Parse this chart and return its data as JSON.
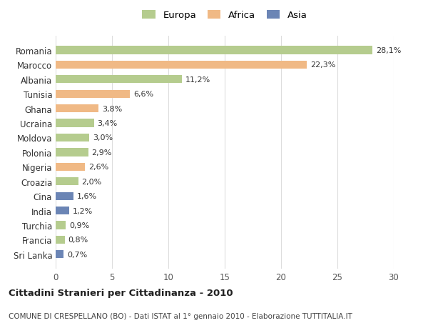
{
  "categories": [
    "Romania",
    "Marocco",
    "Albania",
    "Tunisia",
    "Ghana",
    "Ucraina",
    "Moldova",
    "Polonia",
    "Nigeria",
    "Croazia",
    "Cina",
    "India",
    "Turchia",
    "Francia",
    "Sri Lanka"
  ],
  "values": [
    28.1,
    22.3,
    11.2,
    6.6,
    3.8,
    3.4,
    3.0,
    2.9,
    2.6,
    2.0,
    1.6,
    1.2,
    0.9,
    0.8,
    0.7
  ],
  "labels": [
    "28,1%",
    "22,3%",
    "11,2%",
    "6,6%",
    "3,8%",
    "3,4%",
    "3,0%",
    "2,9%",
    "2,6%",
    "2,0%",
    "1,6%",
    "1,2%",
    "0,9%",
    "0,8%",
    "0,7%"
  ],
  "continents": [
    "Europa",
    "Africa",
    "Europa",
    "Africa",
    "Africa",
    "Europa",
    "Europa",
    "Europa",
    "Africa",
    "Europa",
    "Asia",
    "Asia",
    "Europa",
    "Europa",
    "Asia"
  ],
  "colors": {
    "Europa": "#b5cc8e",
    "Africa": "#f0b985",
    "Asia": "#6b85b5"
  },
  "legend_labels": [
    "Europa",
    "Africa",
    "Asia"
  ],
  "legend_colors": [
    "#b5cc8e",
    "#f0b985",
    "#6b85b5"
  ],
  "xlim": [
    0,
    30
  ],
  "xticks": [
    0,
    5,
    10,
    15,
    20,
    25,
    30
  ],
  "title": "Cittadini Stranieri per Cittadinanza - 2010",
  "subtitle": "COMUNE DI CRESPELLANO (BO) - Dati ISTAT al 1° gennaio 2010 - Elaborazione TUTTITALIA.IT",
  "background_color": "#ffffff",
  "grid_color": "#dddddd"
}
